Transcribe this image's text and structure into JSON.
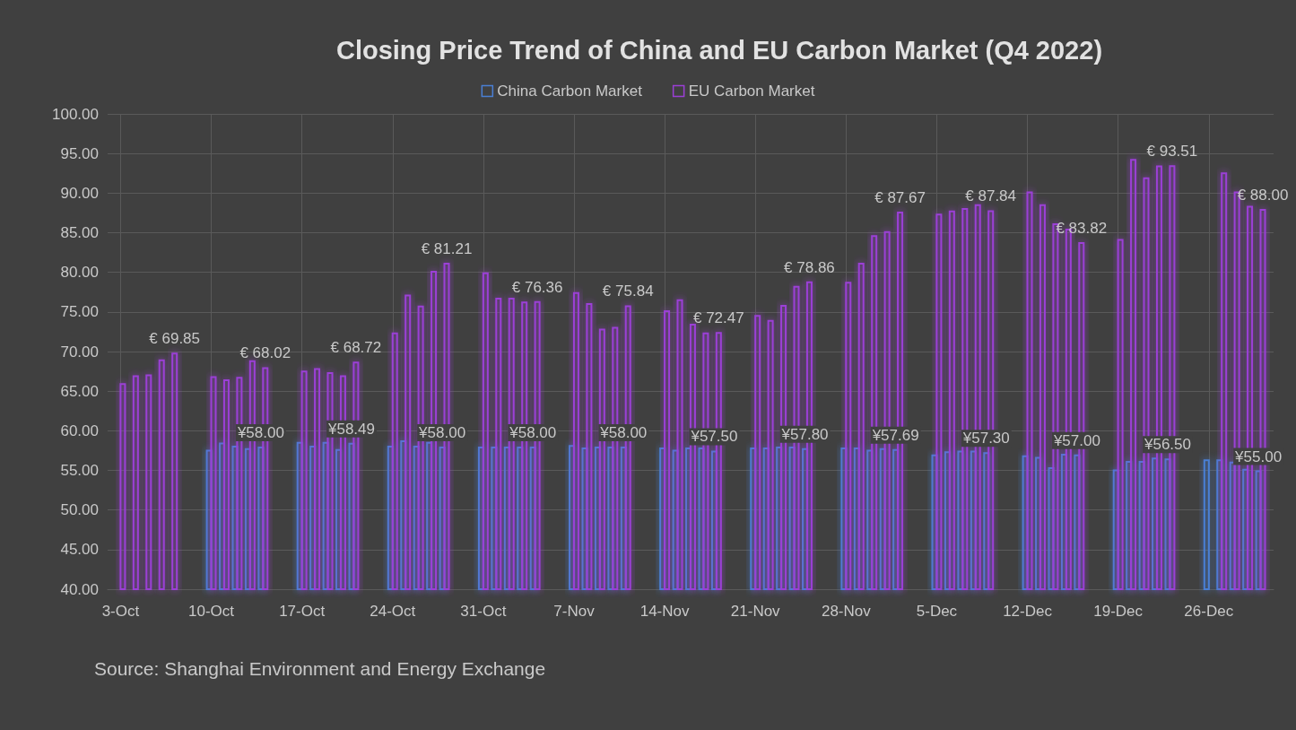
{
  "chart_data": {
    "type": "bar",
    "title": "Closing Price Trend of China and EU Carbon Market (Q4 2022)",
    "annotations": [
      "Source: Shanghai Environment and Energy Exchange"
    ],
    "xlim": [
      "2022-10-02",
      "2022-12-31"
    ],
    "xticks": [
      {
        "value": "2022-10-03",
        "label": "3-Oct"
      },
      {
        "value": "2022-10-10",
        "label": "10-Oct"
      },
      {
        "value": "2022-10-17",
        "label": "17-Oct"
      },
      {
        "value": "2022-10-24",
        "label": "24-Oct"
      },
      {
        "value": "2022-10-31",
        "label": "31-Oct"
      },
      {
        "value": "2022-11-07",
        "label": "7-Nov"
      },
      {
        "value": "2022-11-14",
        "label": "14-Nov"
      },
      {
        "value": "2022-11-21",
        "label": "21-Nov"
      },
      {
        "value": "2022-11-28",
        "label": "28-Nov"
      },
      {
        "value": "2022-12-05",
        "label": "5-Dec"
      },
      {
        "value": "2022-12-12",
        "label": "12-Dec"
      },
      {
        "value": "2022-12-19",
        "label": "19-Dec"
      },
      {
        "value": "2022-12-26",
        "label": "26-Dec"
      }
    ],
    "ylim": [
      40,
      100
    ],
    "yticks": [
      {
        "value": 40,
        "label": "40.00"
      },
      {
        "value": 45,
        "label": "45.00"
      },
      {
        "value": 50,
        "label": "50.00"
      },
      {
        "value": 55,
        "label": "55.00"
      },
      {
        "value": 60,
        "label": "60.00"
      },
      {
        "value": 65,
        "label": "65.00"
      },
      {
        "value": 70,
        "label": "70.00"
      },
      {
        "value": 75,
        "label": "75.00"
      },
      {
        "value": 80,
        "label": "80.00"
      },
      {
        "value": 85,
        "label": "85.00"
      },
      {
        "value": 90,
        "label": "90.00"
      },
      {
        "value": 95,
        "label": "95.00"
      },
      {
        "value": 100,
        "label": "100.00"
      }
    ],
    "grid": true,
    "legend": "top",
    "series": [
      {
        "name": "China Carbon Market",
        "color": "#4a7fd4",
        "x": [
          "2022-10-10",
          "2022-10-11",
          "2022-10-12",
          "2022-10-13",
          "2022-10-14",
          "2022-10-17",
          "2022-10-18",
          "2022-10-19",
          "2022-10-20",
          "2022-10-21",
          "2022-10-24",
          "2022-10-25",
          "2022-10-26",
          "2022-10-27",
          "2022-10-28",
          "2022-10-31",
          "2022-11-01",
          "2022-11-02",
          "2022-11-03",
          "2022-11-04",
          "2022-11-07",
          "2022-11-08",
          "2022-11-09",
          "2022-11-10",
          "2022-11-11",
          "2022-11-14",
          "2022-11-15",
          "2022-11-16",
          "2022-11-17",
          "2022-11-18",
          "2022-11-21",
          "2022-11-22",
          "2022-11-23",
          "2022-11-24",
          "2022-11-25",
          "2022-11-28",
          "2022-11-29",
          "2022-11-30",
          "2022-12-01",
          "2022-12-02",
          "2022-12-05",
          "2022-12-06",
          "2022-12-07",
          "2022-12-08",
          "2022-12-09",
          "2022-12-12",
          "2022-12-13",
          "2022-12-14",
          "2022-12-15",
          "2022-12-16",
          "2022-12-19",
          "2022-12-20",
          "2022-12-21",
          "2022-12-22",
          "2022-12-23",
          "2022-12-26",
          "2022-12-27",
          "2022-12-28",
          "2022-12-29",
          "2022-12-30"
        ],
        "values": [
          57.6,
          58.5,
          58.1,
          57.8,
          58.0,
          58.6,
          58.1,
          58.6,
          57.7,
          58.49,
          58.1,
          58.8,
          58.1,
          58.6,
          58.0,
          58.0,
          58.0,
          58.0,
          58.0,
          58.0,
          58.2,
          57.9,
          58.0,
          58.0,
          58.0,
          57.9,
          57.6,
          57.9,
          57.9,
          57.5,
          57.9,
          57.9,
          58.0,
          58.0,
          57.8,
          57.9,
          57.9,
          57.6,
          57.8,
          57.69,
          57.0,
          57.4,
          57.5,
          57.5,
          57.3,
          56.9,
          56.7,
          55.4,
          57.1,
          57.0,
          55.1,
          56.2,
          56.2,
          56.6,
          56.5,
          56.4,
          56.4,
          56.1,
          55.2,
          55.0
        ],
        "value_labels": [
          null,
          null,
          null,
          null,
          "¥58.00",
          null,
          null,
          null,
          null,
          "¥58.49",
          null,
          null,
          null,
          null,
          "¥58.00",
          null,
          null,
          null,
          null,
          "¥58.00",
          null,
          null,
          null,
          null,
          "¥58.00",
          null,
          null,
          null,
          null,
          "¥57.50",
          null,
          null,
          null,
          null,
          "¥57.80",
          null,
          null,
          null,
          null,
          "¥57.69",
          null,
          null,
          null,
          null,
          "¥57.30",
          null,
          null,
          null,
          null,
          "¥57.00",
          null,
          null,
          null,
          null,
          "¥56.50",
          null,
          null,
          null,
          null,
          "¥55.00"
        ]
      },
      {
        "name": "EU Carbon Market",
        "color": "#9b3fd6",
        "x": [
          "2022-10-03",
          "2022-10-04",
          "2022-10-05",
          "2022-10-06",
          "2022-10-07",
          "2022-10-10",
          "2022-10-11",
          "2022-10-12",
          "2022-10-13",
          "2022-10-14",
          "2022-10-17",
          "2022-10-18",
          "2022-10-19",
          "2022-10-20",
          "2022-10-21",
          "2022-10-24",
          "2022-10-25",
          "2022-10-26",
          "2022-10-27",
          "2022-10-28",
          "2022-10-31",
          "2022-11-01",
          "2022-11-02",
          "2022-11-03",
          "2022-11-04",
          "2022-11-07",
          "2022-11-08",
          "2022-11-09",
          "2022-11-10",
          "2022-11-11",
          "2022-11-14",
          "2022-11-15",
          "2022-11-16",
          "2022-11-17",
          "2022-11-18",
          "2022-11-21",
          "2022-11-22",
          "2022-11-23",
          "2022-11-24",
          "2022-11-25",
          "2022-11-28",
          "2022-11-29",
          "2022-11-30",
          "2022-12-01",
          "2022-12-02",
          "2022-12-05",
          "2022-12-06",
          "2022-12-07",
          "2022-12-08",
          "2022-12-09",
          "2022-12-12",
          "2022-12-13",
          "2022-12-14",
          "2022-12-15",
          "2022-12-16",
          "2022-12-19",
          "2022-12-20",
          "2022-12-21",
          "2022-12-22",
          "2022-12-23",
          "2022-12-27",
          "2022-12-28",
          "2022-12-29",
          "2022-12-30"
        ],
        "values": [
          66.0,
          67.0,
          67.1,
          69.0,
          69.85,
          66.9,
          66.5,
          66.8,
          68.9,
          68.02,
          67.6,
          67.9,
          67.4,
          67.0,
          68.72,
          72.4,
          77.2,
          75.8,
          80.2,
          81.21,
          80.0,
          76.8,
          76.8,
          76.3,
          76.36,
          77.5,
          76.1,
          72.9,
          73.1,
          75.84,
          75.2,
          76.6,
          73.5,
          72.4,
          72.47,
          74.6,
          74.0,
          75.9,
          78.3,
          78.86,
          78.8,
          81.2,
          84.7,
          85.2,
          87.67,
          87.4,
          87.8,
          88.1,
          88.6,
          87.84,
          90.2,
          88.6,
          86.2,
          85.5,
          83.82,
          84.2,
          94.3,
          92.0,
          93.5,
          93.51,
          92.6,
          90.2,
          88.4,
          88.0
        ],
        "value_labels": [
          null,
          null,
          null,
          null,
          "€ 69.85",
          null,
          null,
          null,
          null,
          "€ 68.02",
          null,
          null,
          null,
          null,
          "€ 68.72",
          null,
          null,
          null,
          null,
          "€ 81.21",
          null,
          null,
          null,
          null,
          "€ 76.36",
          null,
          null,
          null,
          null,
          "€ 75.84",
          null,
          null,
          null,
          null,
          "€ 72.47",
          null,
          null,
          null,
          null,
          "€ 78.86",
          null,
          null,
          null,
          null,
          "€ 87.67",
          null,
          null,
          null,
          null,
          "€ 87.84",
          null,
          null,
          null,
          null,
          "€ 83.82",
          null,
          null,
          null,
          null,
          "€ 93.51",
          null,
          null,
          null,
          "€ 88.00"
        ]
      }
    ]
  }
}
